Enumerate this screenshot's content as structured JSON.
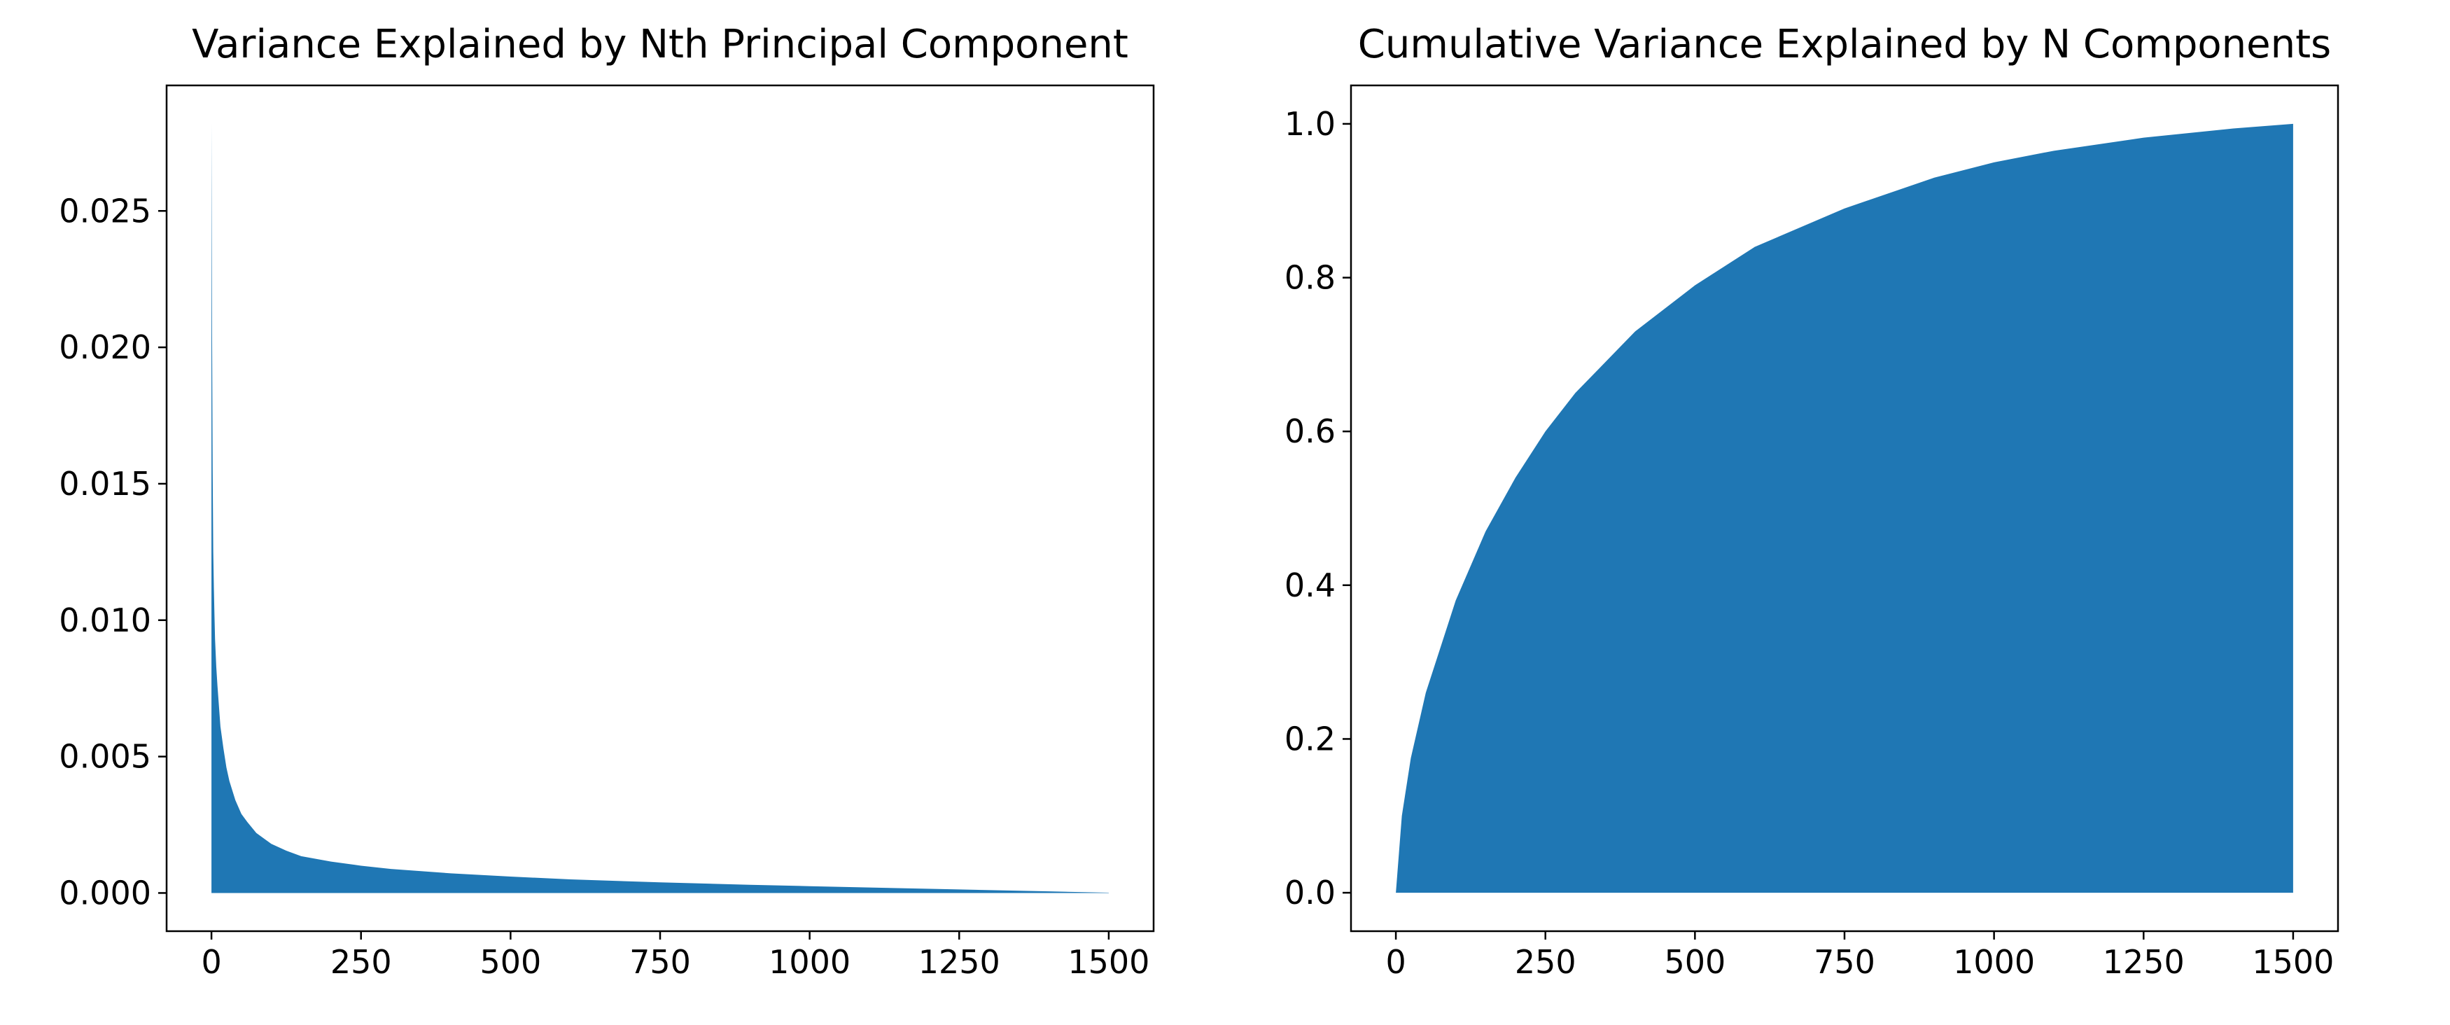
{
  "colors": {
    "fill": "#1f77b4",
    "axes": "#000000",
    "text": "#000000",
    "background": "#ffffff"
  },
  "chart_data": [
    {
      "type": "area",
      "title": "Variance Explained by Nth Principal Component",
      "xlabel": "",
      "ylabel": "",
      "xlim": [
        -75,
        1575
      ],
      "ylim": [
        -0.0014,
        0.0296
      ],
      "xticks": [
        0,
        250,
        500,
        750,
        1000,
        1250,
        1500
      ],
      "xtick_labels": [
        "0",
        "250",
        "500",
        "750",
        "1000",
        "1250",
        "1500"
      ],
      "yticks": [
        0.0,
        0.005,
        0.01,
        0.015,
        0.02,
        0.025
      ],
      "ytick_labels": [
        "0.000",
        "0.005",
        "0.010",
        "0.015",
        "0.020",
        "0.025"
      ],
      "grid": false,
      "legend": "none",
      "x": [
        0,
        1,
        2,
        3,
        4,
        5,
        6,
        8,
        10,
        15,
        20,
        25,
        30,
        40,
        50,
        60,
        75,
        100,
        125,
        150,
        200,
        250,
        300,
        400,
        500,
        600,
        750,
        900,
        1000,
        1100,
        1250,
        1400,
        1500
      ],
      "y": [
        0.0282,
        0.0205,
        0.0155,
        0.0125,
        0.0112,
        0.0102,
        0.0093,
        0.0083,
        0.0076,
        0.0061,
        0.0053,
        0.0046,
        0.0041,
        0.0034,
        0.0029,
        0.0026,
        0.0022,
        0.0018,
        0.00155,
        0.00135,
        0.00115,
        0.001,
        0.00088,
        0.00072,
        0.0006,
        0.0005,
        0.00039,
        0.0003,
        0.00025,
        0.0002,
        0.00013,
        6e-05,
        1e-05
      ]
    },
    {
      "type": "area",
      "title": "Cumulative Variance Explained by N Components",
      "xlabel": "",
      "ylabel": "",
      "xlim": [
        -75,
        1575
      ],
      "ylim": [
        -0.05,
        1.05
      ],
      "xticks": [
        0,
        250,
        500,
        750,
        1000,
        1250,
        1500
      ],
      "xtick_labels": [
        "0",
        "250",
        "500",
        "750",
        "1000",
        "1250",
        "1500"
      ],
      "yticks": [
        0.0,
        0.2,
        0.4,
        0.6,
        0.8,
        1.0
      ],
      "ytick_labels": [
        "0.0",
        "0.2",
        "0.4",
        "0.6",
        "0.8",
        "1.0"
      ],
      "grid": false,
      "legend": "none",
      "x": [
        0,
        10,
        25,
        50,
        100,
        150,
        200,
        250,
        300,
        400,
        500,
        600,
        750,
        900,
        1000,
        1100,
        1250,
        1400,
        1500
      ],
      "y": [
        0.0,
        0.1,
        0.175,
        0.26,
        0.38,
        0.47,
        0.54,
        0.6,
        0.65,
        0.73,
        0.79,
        0.84,
        0.89,
        0.93,
        0.95,
        0.965,
        0.982,
        0.994,
        1.0
      ]
    }
  ]
}
